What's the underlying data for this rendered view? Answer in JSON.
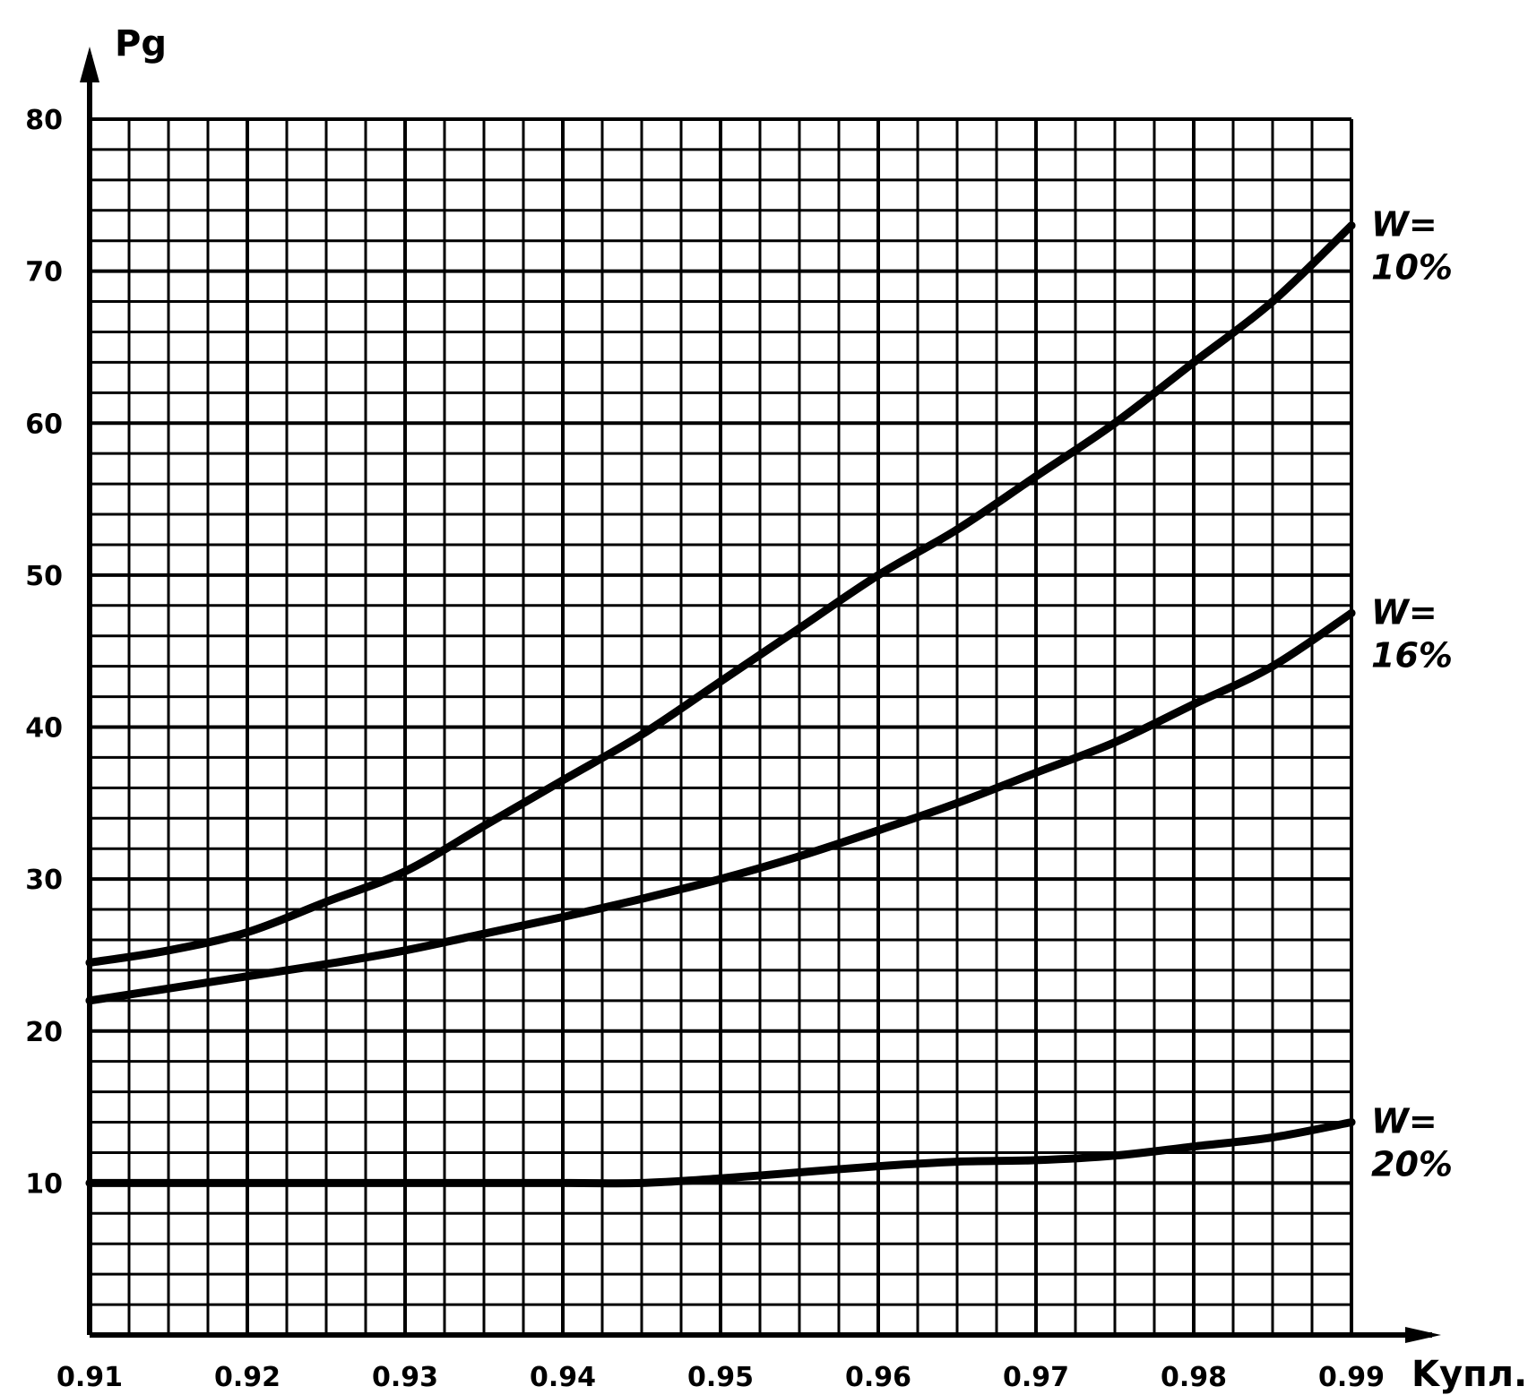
{
  "chart_data": {
    "type": "line",
    "title": "",
    "ylabel": "Pg",
    "xlabel": "Kупл.",
    "xlim": [
      0.91,
      0.99
    ],
    "ylim": [
      0,
      80
    ],
    "x_ticks": [
      "0.91",
      "0.92",
      "0.93",
      "0.94",
      "0.95",
      "0.96",
      "0.97",
      "0.98",
      "0.99"
    ],
    "y_ticks": [
      "10",
      "20",
      "30",
      "40",
      "50",
      "60",
      "70",
      "80"
    ],
    "grid": true,
    "series": [
      {
        "name": "W= 10%",
        "label_lines": [
          "W=",
          "10%"
        ],
        "x": [
          0.91,
          0.915,
          0.92,
          0.925,
          0.93,
          0.935,
          0.94,
          0.945,
          0.95,
          0.955,
          0.96,
          0.965,
          0.97,
          0.975,
          0.98,
          0.985,
          0.99
        ],
        "y": [
          24.5,
          25.3,
          26.5,
          28.5,
          30.5,
          33.5,
          36.5,
          39.5,
          43,
          46.5,
          50,
          53,
          56.5,
          60,
          64,
          68,
          73
        ]
      },
      {
        "name": "W= 16%",
        "label_lines": [
          "W=",
          "16%"
        ],
        "x": [
          0.91,
          0.915,
          0.92,
          0.925,
          0.93,
          0.935,
          0.94,
          0.945,
          0.95,
          0.955,
          0.96,
          0.965,
          0.97,
          0.975,
          0.98,
          0.985,
          0.99
        ],
        "y": [
          22,
          22.8,
          23.6,
          24.4,
          25.3,
          26.4,
          27.5,
          28.7,
          30,
          31.5,
          33.2,
          35,
          37,
          39,
          41.5,
          44,
          47.5
        ]
      },
      {
        "name": "W= 20%",
        "label_lines": [
          "W=",
          "20%"
        ],
        "x": [
          0.91,
          0.92,
          0.93,
          0.94,
          0.945,
          0.95,
          0.955,
          0.96,
          0.965,
          0.97,
          0.975,
          0.98,
          0.985,
          0.99
        ],
        "y": [
          10,
          10,
          10,
          10,
          10,
          10.3,
          10.7,
          11.1,
          11.4,
          11.5,
          11.8,
          12.4,
          13,
          14
        ]
      }
    ]
  }
}
